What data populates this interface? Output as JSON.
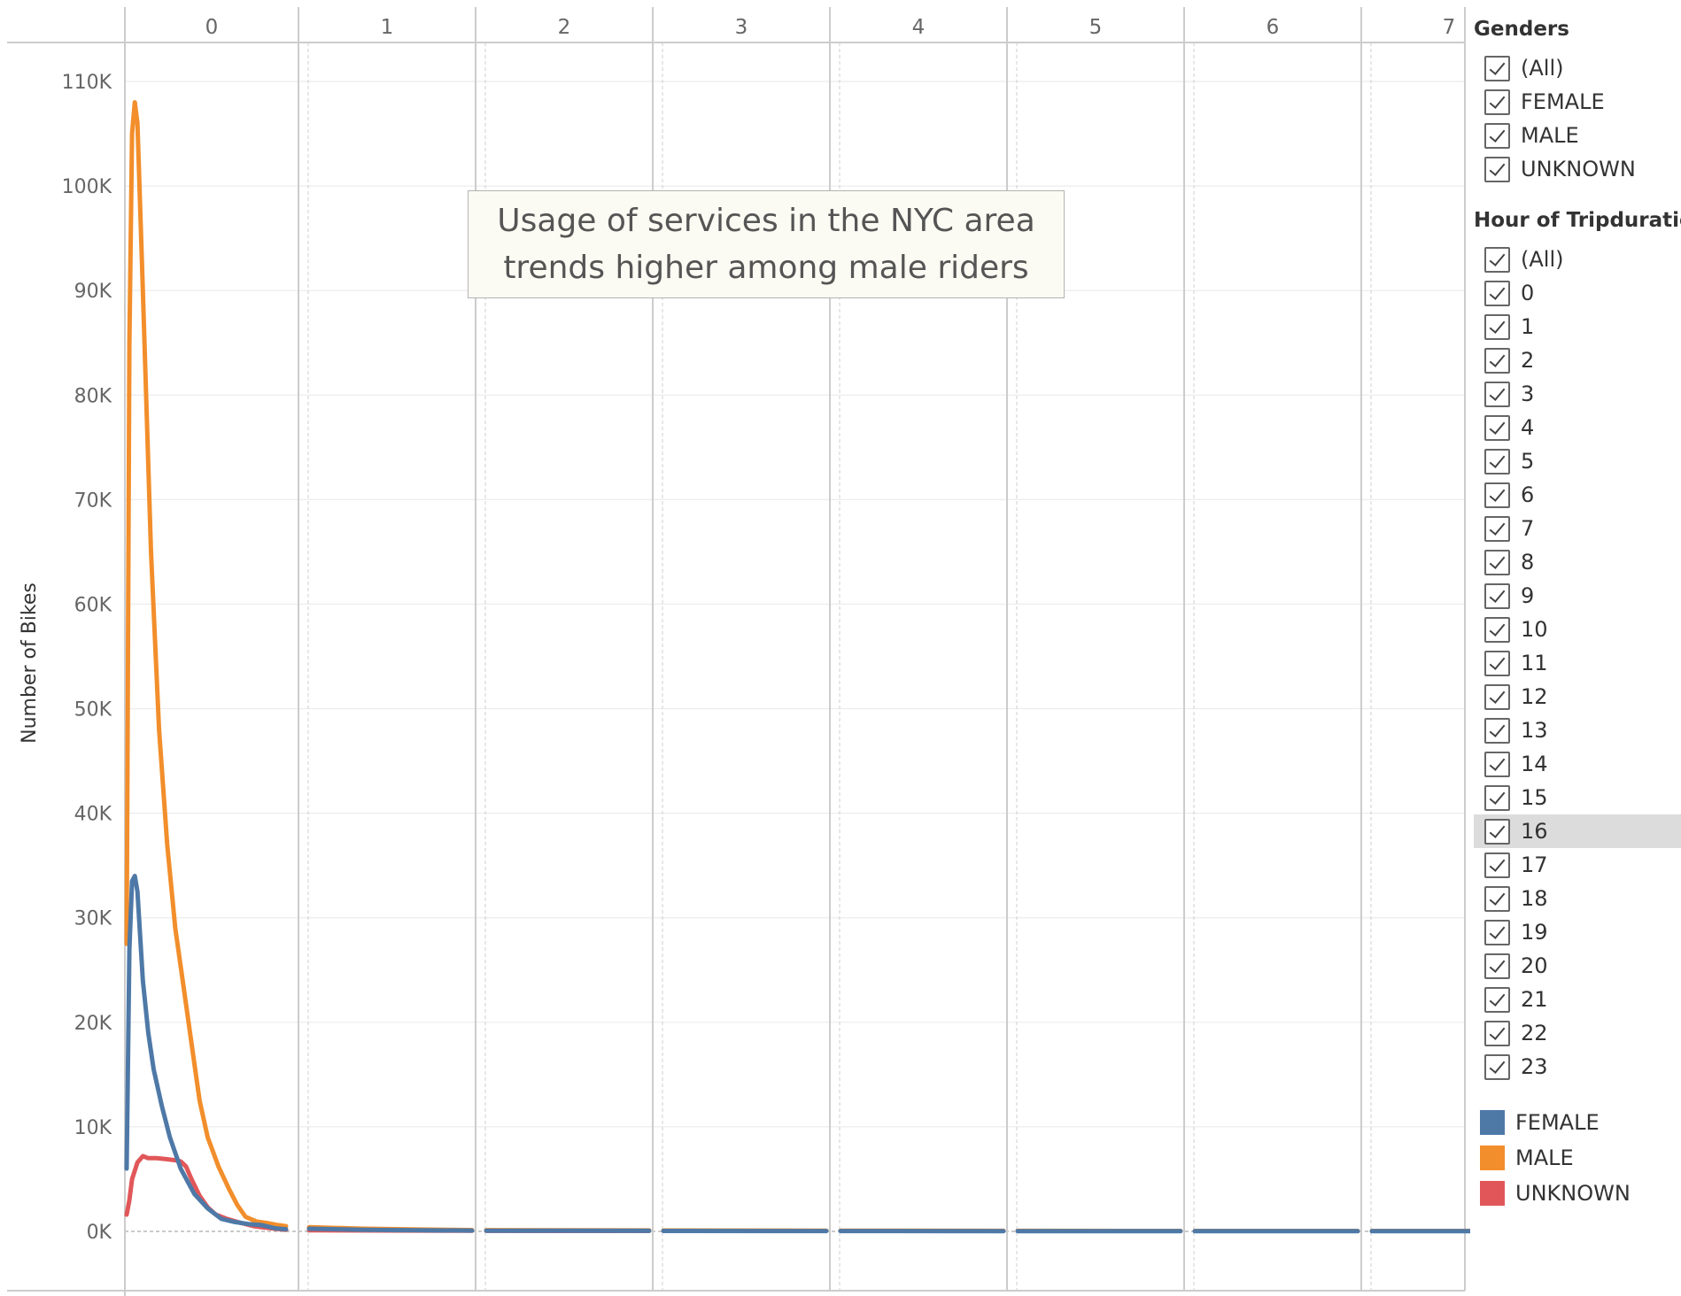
{
  "chart_data": {
    "type": "line",
    "title": "",
    "xlabel": "",
    "ylabel": "Number of Bikes",
    "ylim": [
      0,
      110000
    ],
    "y_ticks": [
      "0K",
      "10K",
      "20K",
      "30K",
      "40K",
      "50K",
      "60K",
      "70K",
      "80K",
      "90K",
      "100K",
      "110K"
    ],
    "y_tick_values": [
      0,
      10000,
      20000,
      30000,
      40000,
      50000,
      60000,
      70000,
      80000,
      90000,
      100000,
      110000
    ],
    "panels": [
      "0",
      "1",
      "2",
      "3",
      "4",
      "5",
      "6",
      "7"
    ],
    "x_within_panel": "minute of tripduration",
    "x_range": [
      0,
      59
    ],
    "grid": true,
    "legend_position": "right",
    "series": [
      {
        "name": "FEMALE",
        "color": "#4e79a7",
        "points": [
          [
            0,
            0,
            6000
          ],
          [
            0,
            1,
            27000
          ],
          [
            0,
            2,
            33500
          ],
          [
            0,
            3,
            34000
          ],
          [
            0,
            4,
            32500
          ],
          [
            0,
            6,
            24000
          ],
          [
            0,
            8,
            19000
          ],
          [
            0,
            10,
            15500
          ],
          [
            0,
            13,
            12000
          ],
          [
            0,
            16,
            9000
          ],
          [
            0,
            20,
            6000
          ],
          [
            0,
            25,
            3600
          ],
          [
            0,
            30,
            2200
          ],
          [
            0,
            35,
            1200
          ],
          [
            0,
            40,
            900
          ],
          [
            0,
            45,
            700
          ],
          [
            0,
            50,
            600
          ],
          [
            0,
            55,
            300
          ],
          [
            0,
            59,
            200
          ],
          [
            1,
            0,
            250
          ],
          [
            1,
            20,
            150
          ],
          [
            1,
            40,
            110
          ],
          [
            1,
            59,
            80
          ],
          [
            2,
            0,
            70
          ],
          [
            2,
            59,
            50
          ],
          [
            3,
            0,
            45
          ],
          [
            3,
            59,
            35
          ],
          [
            4,
            0,
            30
          ],
          [
            4,
            59,
            25
          ],
          [
            5,
            0,
            25
          ],
          [
            5,
            59,
            20
          ],
          [
            6,
            0,
            20
          ],
          [
            6,
            59,
            18
          ],
          [
            7,
            0,
            18
          ],
          [
            7,
            59,
            15
          ]
        ]
      },
      {
        "name": "MALE",
        "color": "#f28e2b",
        "points": [
          [
            0,
            0,
            27500
          ],
          [
            0,
            1,
            85000
          ],
          [
            0,
            2,
            105000
          ],
          [
            0,
            3,
            108000
          ],
          [
            0,
            4,
            106000
          ],
          [
            0,
            6,
            90000
          ],
          [
            0,
            9,
            65000
          ],
          [
            0,
            12,
            48000
          ],
          [
            0,
            15,
            37000
          ],
          [
            0,
            18,
            29000
          ],
          [
            0,
            21,
            23500
          ],
          [
            0,
            24,
            18000
          ],
          [
            0,
            27,
            12500
          ],
          [
            0,
            30,
            9000
          ],
          [
            0,
            34,
            6200
          ],
          [
            0,
            38,
            4000
          ],
          [
            0,
            41,
            2500
          ],
          [
            0,
            44,
            1400
          ],
          [
            0,
            48,
            950
          ],
          [
            0,
            52,
            800
          ],
          [
            0,
            56,
            600
          ],
          [
            0,
            59,
            500
          ],
          [
            1,
            0,
            400
          ],
          [
            1,
            20,
            250
          ],
          [
            1,
            40,
            180
          ],
          [
            1,
            59,
            130
          ],
          [
            2,
            0,
            120
          ],
          [
            2,
            59,
            90
          ],
          [
            3,
            0,
            85
          ],
          [
            3,
            59,
            70
          ],
          [
            4,
            0,
            65
          ],
          [
            4,
            59,
            55
          ],
          [
            5,
            0,
            55
          ],
          [
            5,
            59,
            45
          ],
          [
            6,
            0,
            45
          ],
          [
            6,
            59,
            40
          ],
          [
            7,
            0,
            40
          ],
          [
            7,
            59,
            35
          ]
        ]
      },
      {
        "name": "UNKNOWN",
        "color": "#e15759",
        "points": [
          [
            0,
            0,
            1600
          ],
          [
            0,
            1,
            3000
          ],
          [
            0,
            2,
            5000
          ],
          [
            0,
            4,
            6600
          ],
          [
            0,
            6,
            7200
          ],
          [
            0,
            8,
            7000
          ],
          [
            0,
            11,
            7000
          ],
          [
            0,
            15,
            6900
          ],
          [
            0,
            18,
            6800
          ],
          [
            0,
            20,
            6700
          ],
          [
            0,
            22,
            6200
          ],
          [
            0,
            24,
            5000
          ],
          [
            0,
            27,
            3400
          ],
          [
            0,
            30,
            2300
          ],
          [
            0,
            33,
            1600
          ],
          [
            0,
            37,
            1200
          ],
          [
            0,
            41,
            900
          ],
          [
            0,
            44,
            700
          ],
          [
            0,
            47,
            500
          ],
          [
            0,
            50,
            400
          ],
          [
            0,
            55,
            250
          ],
          [
            0,
            59,
            150
          ],
          [
            1,
            0,
            100
          ],
          [
            1,
            59,
            60
          ],
          [
            2,
            0,
            50
          ],
          [
            2,
            59,
            40
          ]
        ]
      }
    ]
  },
  "annotation": {
    "line1": "Usage of services in the NYC area",
    "line2": "trends higher among male riders"
  },
  "filters": {
    "genders": {
      "title": "Genders",
      "items": [
        "(All)",
        "FEMALE",
        "MALE",
        "UNKNOWN"
      ]
    },
    "hours": {
      "title": "Hour of Tripduration",
      "items": [
        "(All)",
        "0",
        "1",
        "2",
        "3",
        "4",
        "5",
        "6",
        "7",
        "8",
        "9",
        "10",
        "11",
        "12",
        "13",
        "14",
        "15",
        "16",
        "17",
        "18",
        "19",
        "20",
        "21",
        "22",
        "23"
      ],
      "highlighted": "16"
    }
  },
  "legend": {
    "items": [
      {
        "label": "FEMALE",
        "color": "#4e79a7"
      },
      {
        "label": "MALE",
        "color": "#f28e2b"
      },
      {
        "label": "UNKNOWN",
        "color": "#e15759"
      }
    ]
  }
}
